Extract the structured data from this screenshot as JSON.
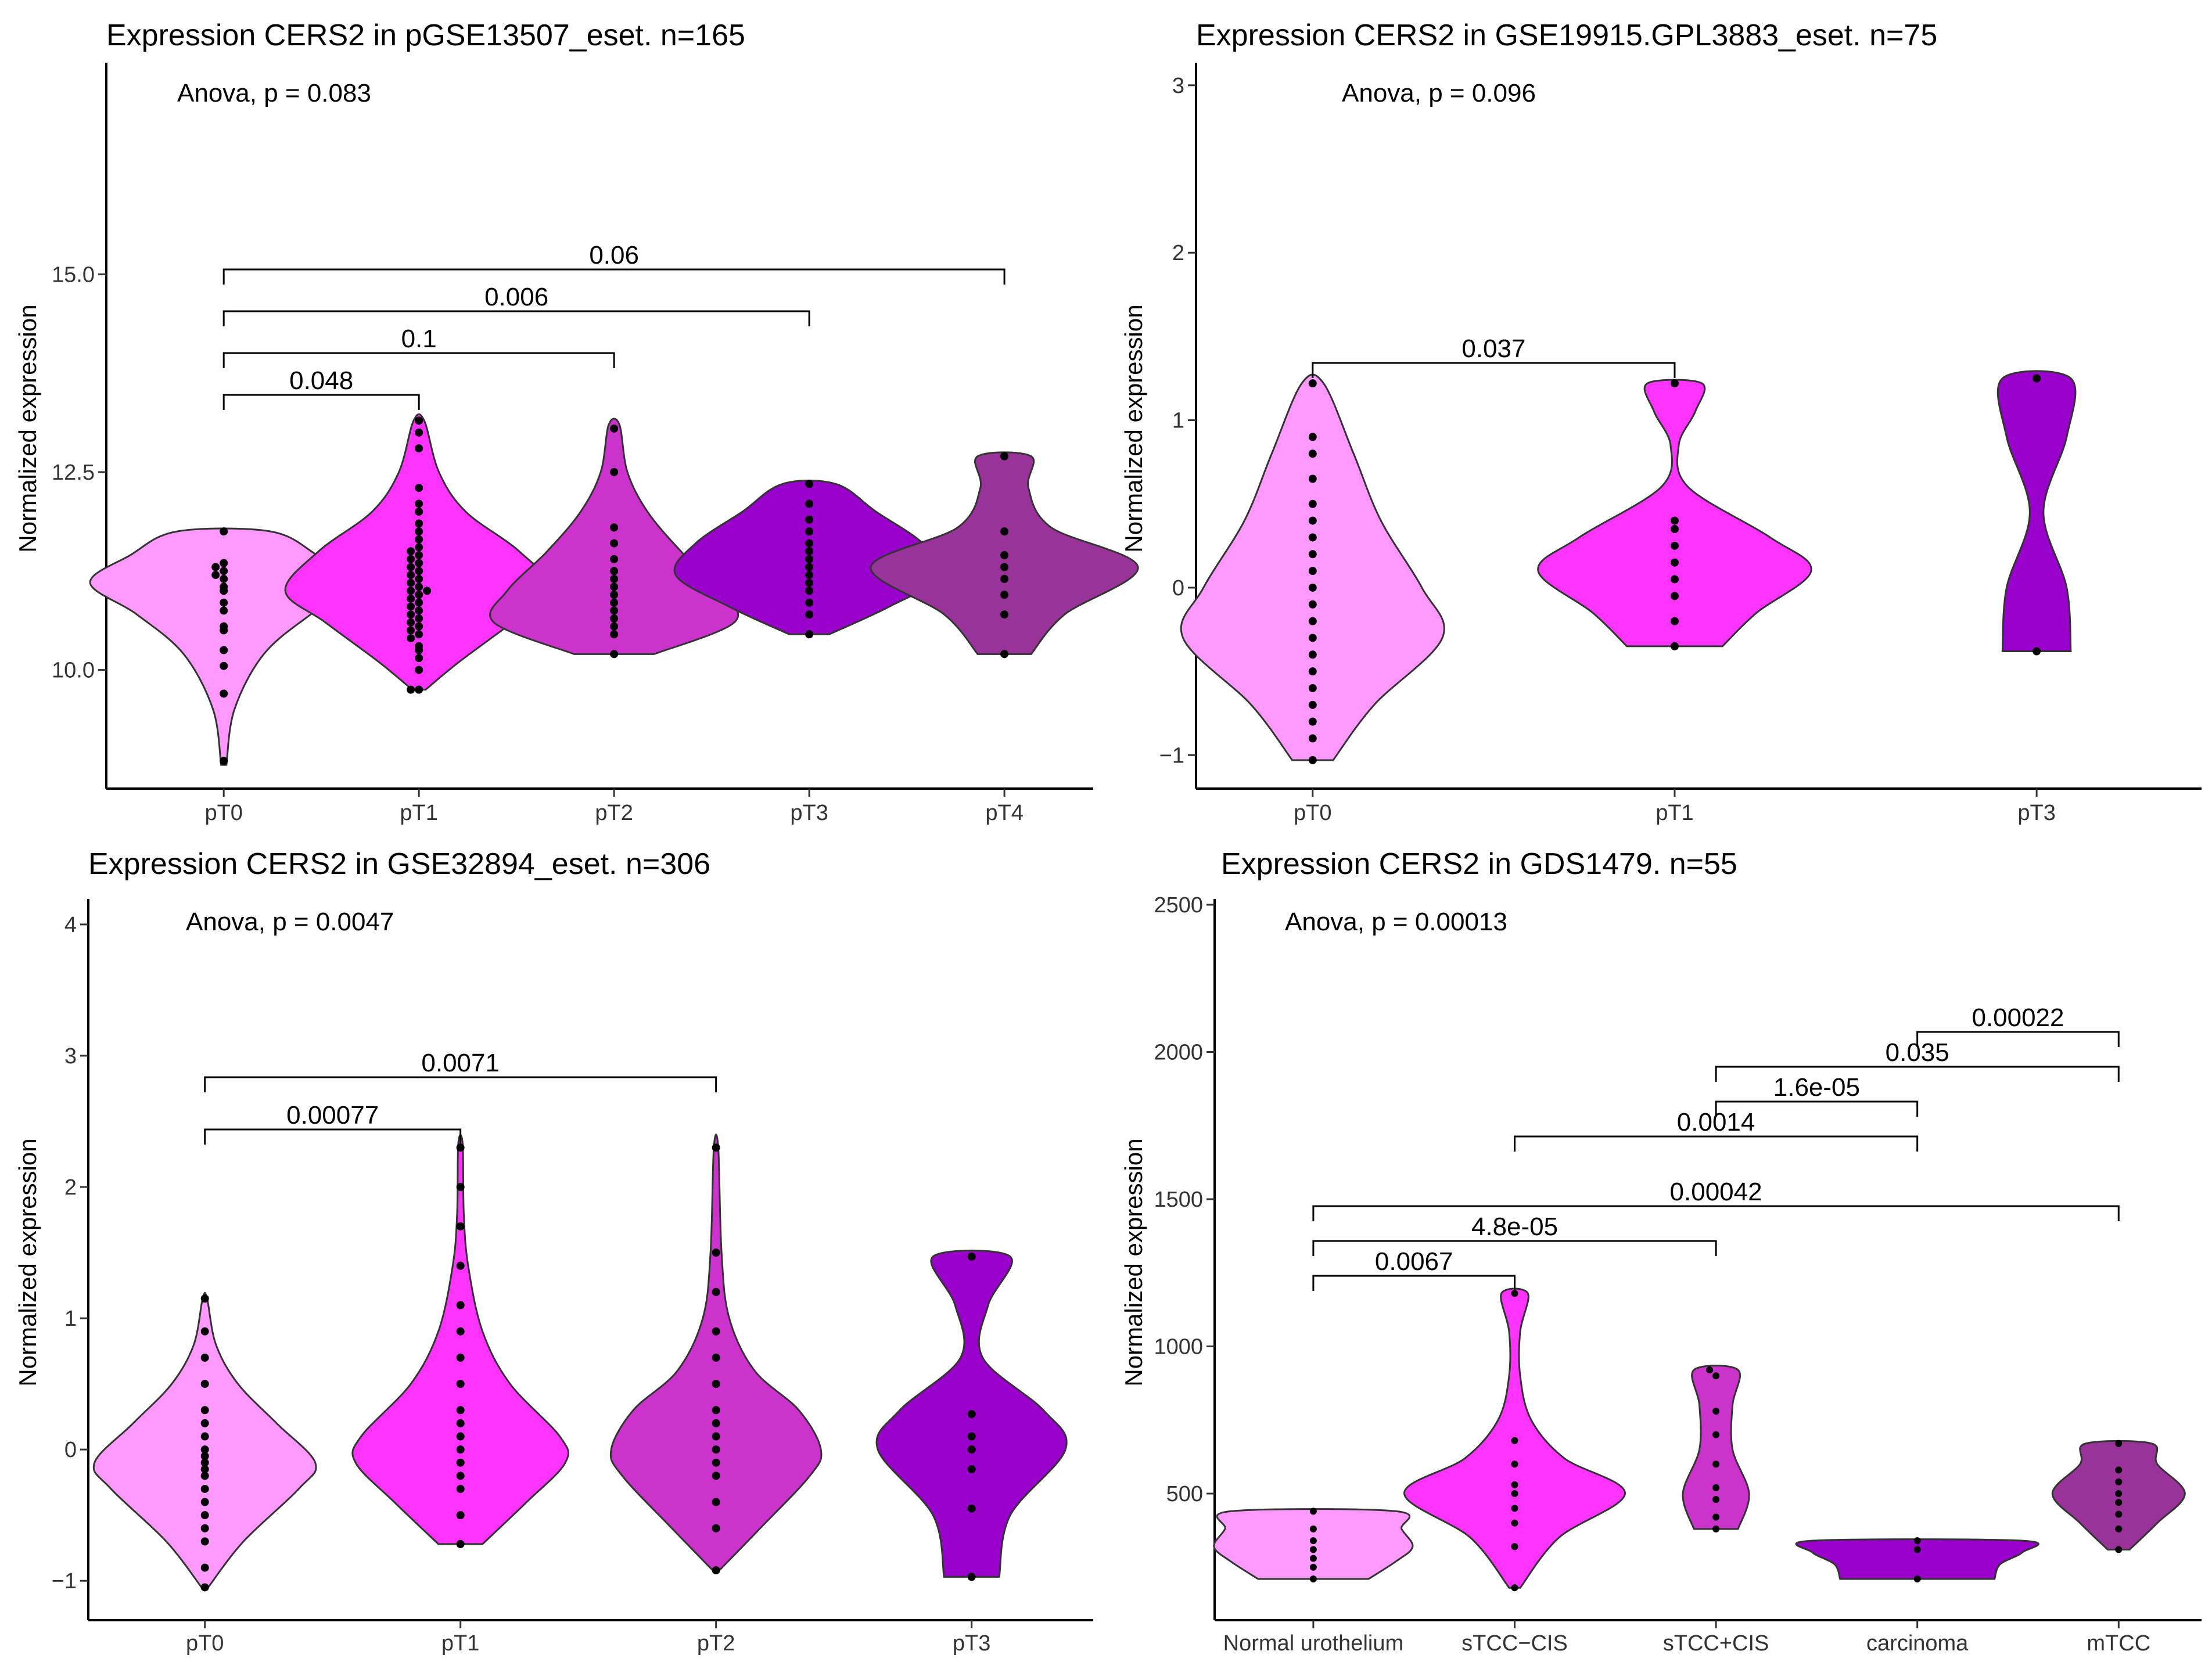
{
  "figure": {
    "ylabel": "Normalized expression"
  },
  "colors": {
    "pT0": "#FF99FF",
    "pT1": "#FF33FF",
    "pT2": "#CC33CC",
    "pT3": "#9900CC",
    "pT4": "#993399",
    "Normal urothelium": "#FF99FF",
    "sTCC-CIS": "#FF33FF",
    "sTCC+CIS": "#CC33CC",
    "carcinoma": "#9900CC",
    "mTCC": "#993399"
  },
  "chart_data": [
    {
      "type": "violin",
      "title": "Expression CERS2 in pGSE13507_eset.  n=165",
      "annotation": "Anova, p = 0.083",
      "xlabel": "",
      "ylabel": "Normalized expression",
      "ylim": [
        8.5,
        17.6
      ],
      "yticks": [
        10.0,
        12.5,
        15.0
      ],
      "ytick_labels": [
        "10.0",
        "12.5",
        "15.0"
      ],
      "categories": [
        "pT0",
        "pT1",
        "pT2",
        "pT3",
        "pT4"
      ],
      "series": [
        {
          "name": "pT0",
          "min": 8.8,
          "max": 11.75,
          "profile": [
            [
              8.8,
              0.02
            ],
            [
              9.5,
              0.08
            ],
            [
              10.2,
              0.3
            ],
            [
              10.7,
              0.65
            ],
            [
              11.1,
              1.0
            ],
            [
              11.45,
              0.7
            ],
            [
              11.75,
              0.35
            ]
          ],
          "points": [
            8.85,
            9.7,
            10.05,
            10.25,
            10.5,
            10.55,
            10.75,
            10.85,
            11.0,
            11.05,
            11.15,
            11.2,
            11.25,
            11.3,
            11.35,
            11.75
          ]
        },
        {
          "name": "pT1",
          "min": 9.75,
          "max": 13.15,
          "profile": [
            [
              9.75,
              0.05
            ],
            [
              10.1,
              0.3
            ],
            [
              10.6,
              0.7
            ],
            [
              11.0,
              1.0
            ],
            [
              11.5,
              0.75
            ],
            [
              12.0,
              0.35
            ],
            [
              12.5,
              0.15
            ],
            [
              13.15,
              0.04
            ]
          ],
          "points": [
            9.75,
            9.75,
            10.0,
            10.15,
            10.25,
            10.3,
            10.4,
            10.45,
            10.5,
            10.55,
            10.6,
            10.65,
            10.7,
            10.75,
            10.8,
            10.85,
            10.9,
            10.95,
            11.0,
            11.0,
            11.05,
            11.1,
            11.15,
            11.2,
            11.25,
            11.3,
            11.35,
            11.4,
            11.45,
            11.5,
            11.55,
            11.65,
            11.75,
            11.85,
            12.0,
            12.1,
            12.3,
            12.8,
            13.0,
            13.15
          ]
        },
        {
          "name": "pT2",
          "min": 10.2,
          "max": 13.1,
          "profile": [
            [
              10.2,
              0.3
            ],
            [
              10.6,
              0.9
            ],
            [
              11.0,
              0.8
            ],
            [
              11.5,
              0.5
            ],
            [
              12.0,
              0.25
            ],
            [
              12.5,
              0.1
            ],
            [
              13.1,
              0.04
            ]
          ],
          "points": [
            10.2,
            10.45,
            10.55,
            10.65,
            10.75,
            10.85,
            10.95,
            11.05,
            11.15,
            11.25,
            11.4,
            11.6,
            11.8,
            12.5,
            13.05
          ]
        },
        {
          "name": "pT3",
          "min": 10.45,
          "max": 12.35,
          "profile": [
            [
              10.45,
              0.15
            ],
            [
              10.8,
              0.6
            ],
            [
              11.2,
              1.0
            ],
            [
              11.6,
              0.85
            ],
            [
              12.0,
              0.5
            ],
            [
              12.35,
              0.2
            ]
          ],
          "points": [
            10.45,
            10.7,
            10.85,
            11.0,
            11.1,
            11.2,
            11.3,
            11.4,
            11.5,
            11.6,
            11.75,
            11.9,
            12.1,
            12.35
          ]
        },
        {
          "name": "pT4",
          "min": 10.2,
          "max": 12.7,
          "profile": [
            [
              10.2,
              0.2
            ],
            [
              10.7,
              0.45
            ],
            [
              11.3,
              1.0
            ],
            [
              11.8,
              0.35
            ],
            [
              12.3,
              0.18
            ],
            [
              12.7,
              0.2
            ]
          ],
          "points": [
            10.2,
            10.7,
            10.95,
            11.15,
            11.3,
            11.45,
            11.75,
            12.7
          ]
        }
      ],
      "comparisons": [
        {
          "pair": [
            "pT0",
            "pT1"
          ],
          "label": "0.048"
        },
        {
          "pair": [
            "pT0",
            "pT2"
          ],
          "label": "0.1"
        },
        {
          "pair": [
            "pT0",
            "pT3"
          ],
          "label": "0.006"
        },
        {
          "pair": [
            "pT0",
            "pT4"
          ],
          "label": "0.06"
        }
      ]
    },
    {
      "type": "violin",
      "title": "Expression CERS2 in GSE19915.GPL3883_eset.  n=75",
      "annotation": "Anova, p = 0.096",
      "xlabel": "",
      "ylabel": "Normalized expression",
      "ylim": [
        -1.2,
        3.1
      ],
      "yticks": [
        -1,
        0,
        1,
        2,
        3
      ],
      "ytick_labels": [
        "−1",
        "0",
        "1",
        "2",
        "3"
      ],
      "categories": [
        "pT0",
        "pT1",
        "pT3"
      ],
      "series": [
        {
          "name": "pT0",
          "min": -1.03,
          "max": 1.22,
          "profile": [
            [
              -1.03,
              0.15
            ],
            [
              -0.7,
              0.45
            ],
            [
              -0.3,
              0.95
            ],
            [
              0.0,
              0.8
            ],
            [
              0.4,
              0.5
            ],
            [
              0.8,
              0.3
            ],
            [
              1.22,
              0.08
            ]
          ],
          "points": [
            -1.03,
            -0.9,
            -0.8,
            -0.7,
            -0.6,
            -0.5,
            -0.4,
            -0.3,
            -0.2,
            -0.1,
            0.0,
            0.1,
            0.2,
            0.3,
            0.4,
            0.5,
            0.65,
            0.8,
            0.9,
            1.22
          ]
        },
        {
          "name": "pT1",
          "min": -0.35,
          "max": 1.22,
          "profile": [
            [
              -0.35,
              0.35
            ],
            [
              -0.15,
              0.6
            ],
            [
              0.1,
              1.0
            ],
            [
              0.3,
              0.7
            ],
            [
              0.6,
              0.1
            ],
            [
              0.85,
              0.03
            ],
            [
              1.05,
              0.15
            ],
            [
              1.22,
              0.2
            ]
          ],
          "points": [
            -0.35,
            -0.2,
            -0.05,
            0.05,
            0.15,
            0.25,
            0.35,
            0.4,
            1.22
          ]
        },
        {
          "name": "pT3",
          "min": -0.38,
          "max": 1.25,
          "profile": [
            [
              -0.38,
              0.25
            ],
            [
              0.0,
              0.22
            ],
            [
              0.45,
              0.05
            ],
            [
              0.9,
              0.22
            ],
            [
              1.25,
              0.25
            ]
          ],
          "points": [
            -0.38,
            1.25
          ]
        }
      ],
      "comparisons": [
        {
          "pair": [
            "pT0",
            "pT1"
          ],
          "label": "0.037"
        }
      ]
    },
    {
      "type": "violin",
      "title": "Expression CERS2 in GSE32894_eset.  n=306",
      "annotation": "Anova, p = 0.0047",
      "xlabel": "",
      "ylabel": "Normalized expression",
      "ylim": [
        -1.3,
        4.15
      ],
      "yticks": [
        -1,
        0,
        1,
        2,
        3,
        4
      ],
      "ytick_labels": [
        "−1",
        "0",
        "1",
        "2",
        "3",
        "4"
      ],
      "categories": [
        "pT0",
        "pT1",
        "pT2",
        "pT3"
      ],
      "series": [
        {
          "name": "pT0",
          "min": -1.05,
          "max": 1.15,
          "profile": [
            [
              -1.05,
              0.03
            ],
            [
              -0.7,
              0.35
            ],
            [
              -0.3,
              0.85
            ],
            [
              -0.1,
              1.0
            ],
            [
              0.2,
              0.65
            ],
            [
              0.5,
              0.3
            ],
            [
              0.8,
              0.1
            ],
            [
              1.15,
              0.02
            ]
          ],
          "points": [
            -1.05,
            -0.9,
            -0.7,
            -0.6,
            -0.5,
            -0.4,
            -0.3,
            -0.2,
            -0.15,
            -0.1,
            -0.05,
            0.0,
            0.1,
            0.2,
            0.3,
            0.5,
            0.7,
            0.9,
            1.15
          ]
        },
        {
          "name": "pT1",
          "min": -0.72,
          "max": 2.33,
          "profile": [
            [
              -0.72,
              0.2
            ],
            [
              -0.4,
              0.6
            ],
            [
              -0.1,
              0.95
            ],
            [
              0.1,
              0.9
            ],
            [
              0.5,
              0.45
            ],
            [
              0.9,
              0.2
            ],
            [
              1.4,
              0.07
            ],
            [
              1.8,
              0.03
            ],
            [
              2.33,
              0.02
            ]
          ],
          "points": [
            -0.72,
            -0.5,
            -0.3,
            -0.2,
            -0.1,
            0.0,
            0.1,
            0.2,
            0.3,
            0.5,
            0.7,
            0.9,
            1.1,
            1.4,
            1.7,
            2.0,
            2.3
          ]
        },
        {
          "name": "pT2",
          "min": -0.92,
          "max": 2.3,
          "profile": [
            [
              -0.92,
              0.03
            ],
            [
              -0.6,
              0.4
            ],
            [
              -0.2,
              0.85
            ],
            [
              0.0,
              0.95
            ],
            [
              0.3,
              0.75
            ],
            [
              0.6,
              0.35
            ],
            [
              1.0,
              0.12
            ],
            [
              1.5,
              0.05
            ],
            [
              2.3,
              0.02
            ]
          ],
          "points": [
            -0.92,
            -0.6,
            -0.4,
            -0.2,
            -0.1,
            0.0,
            0.1,
            0.2,
            0.3,
            0.5,
            0.7,
            0.9,
            1.2,
            1.5,
            2.3
          ]
        },
        {
          "name": "pT3",
          "min": -0.97,
          "max": 1.47,
          "profile": [
            [
              -0.97,
              0.25
            ],
            [
              -0.5,
              0.35
            ],
            [
              0.0,
              0.85
            ],
            [
              0.3,
              0.65
            ],
            [
              0.7,
              0.1
            ],
            [
              1.1,
              0.15
            ],
            [
              1.47,
              0.35
            ]
          ],
          "points": [
            -0.97,
            -0.45,
            -0.15,
            0.0,
            0.1,
            0.27,
            1.47
          ]
        }
      ],
      "comparisons": [
        {
          "pair": [
            "pT0",
            "pT1"
          ],
          "label": "0.00077"
        },
        {
          "pair": [
            "pT0",
            "pT2"
          ],
          "label": "0.0071"
        }
      ]
    },
    {
      "type": "violin",
      "title": "Expression CERS2 in GDS1479.  n=55",
      "annotation": "Anova, p = 0.00013",
      "xlabel": "",
      "ylabel": "Normalized expression",
      "ylim": [
        70,
        2500
      ],
      "yticks": [
        500,
        1000,
        1500,
        2000,
        2500
      ],
      "ytick_labels": [
        "500",
        "1000",
        "1500",
        "2000",
        "2500"
      ],
      "categories": [
        "Normal urothelium",
        "sTCC−CIS",
        "sTCC+CIS",
        "carcinoma",
        "mTCC"
      ],
      "series": [
        {
          "name": "Normal urothelium",
          "min": 210,
          "max": 440,
          "profile": [
            [
              210,
              0.5
            ],
            [
              270,
              0.75
            ],
            [
              320,
              0.9
            ],
            [
              380,
              0.8
            ],
            [
              440,
              0.75
            ]
          ],
          "points": [
            210,
            250,
            280,
            310,
            340,
            380,
            440
          ]
        },
        {
          "name": "sTCC−CIS",
          "min": 180,
          "max": 1180,
          "profile": [
            [
              180,
              0.05
            ],
            [
              350,
              0.4
            ],
            [
              500,
              1.0
            ],
            [
              620,
              0.45
            ],
            [
              750,
              0.15
            ],
            [
              900,
              0.05
            ],
            [
              1050,
              0.05
            ],
            [
              1180,
              0.12
            ]
          ],
          "points": [
            180,
            320,
            400,
            450,
            500,
            530,
            600,
            680,
            1180
          ]
        },
        {
          "name": "sTCC+CIS",
          "min": 380,
          "max": 920,
          "profile": [
            [
              380,
              0.2
            ],
            [
              500,
              0.3
            ],
            [
              650,
              0.15
            ],
            [
              800,
              0.15
            ],
            [
              920,
              0.2
            ]
          ],
          "points": [
            380,
            420,
            480,
            520,
            600,
            700,
            780,
            900,
            920
          ]
        },
        {
          "name": "carcinoma",
          "min": 210,
          "max": 340,
          "profile": [
            [
              210,
              0.7
            ],
            [
              260,
              0.75
            ],
            [
              300,
              0.95
            ],
            [
              340,
              0.95
            ]
          ],
          "points": [
            210,
            310,
            340
          ]
        },
        {
          "name": "mTCC",
          "min": 310,
          "max": 670,
          "profile": [
            [
              310,
              0.1
            ],
            [
              400,
              0.35
            ],
            [
              500,
              0.6
            ],
            [
              600,
              0.35
            ],
            [
              670,
              0.3
            ]
          ],
          "points": [
            310,
            380,
            430,
            470,
            500,
            540,
            580,
            670
          ]
        }
      ],
      "comparisons": [
        {
          "pair": [
            "Normal urothelium",
            "sTCC−CIS"
          ],
          "label": "0.0067"
        },
        {
          "pair": [
            "Normal urothelium",
            "sTCC+CIS"
          ],
          "label": "4.8e-05"
        },
        {
          "pair": [
            "Normal urothelium",
            "mTCC"
          ],
          "label": "0.00042"
        },
        {
          "pair": [
            "sTCC−CIS",
            "carcinoma"
          ],
          "label": "0.0014"
        },
        {
          "pair": [
            "sTCC+CIS",
            "carcinoma"
          ],
          "label": "1.6e-05"
        },
        {
          "pair": [
            "sTCC+CIS",
            "mTCC"
          ],
          "label": "0.035"
        },
        {
          "pair": [
            "carcinoma",
            "mTCC"
          ],
          "label": "0.00022"
        }
      ]
    }
  ]
}
